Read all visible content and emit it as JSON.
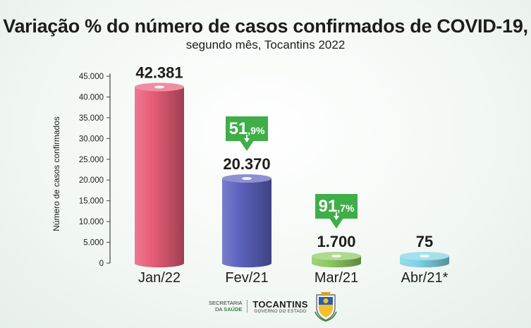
{
  "header": {
    "title": "Variação % do número de casos confirmados de COVID-19,",
    "subtitle": "segundo mês, Tocantins 2022"
  },
  "chart_data": {
    "type": "bar",
    "title": "Variação % do número de casos confirmados de COVID-19,",
    "subtitle": "segundo mês, Tocantins 2022",
    "xlabel": "",
    "ylabel": "Número de casos confirmados",
    "ylim": [
      0,
      45000
    ],
    "yticks": [
      0,
      5000,
      10000,
      15000,
      20000,
      25000,
      30000,
      35000,
      40000,
      45000
    ],
    "ytick_labels": [
      "0",
      "5.000",
      "10.000",
      "15.000",
      "20.000",
      "25.000",
      "30.000",
      "35.000",
      "40.000",
      "45.000"
    ],
    "categories": [
      "Jan/22",
      "Fev/21",
      "Mar/21",
      "Abr/21*"
    ],
    "values": [
      42381,
      20370,
      1700,
      75
    ],
    "value_labels": [
      "42.381",
      "20.370",
      "1.700",
      "75"
    ],
    "colors": [
      "#e85d78",
      "#5c62be",
      "#8cc860",
      "#7fd4e4"
    ],
    "annotations": [
      {
        "category": "Fev/21",
        "main": "51",
        "decimal": ",9%",
        "direction": "down"
      },
      {
        "category": "Mar/21",
        "main": "91",
        "decimal": ",7%",
        "direction": "down"
      }
    ],
    "arrow_color": "#3fae49",
    "grid": false,
    "legend": "none"
  },
  "footer": {
    "secretaria_line1": "SECRETARIA",
    "secretaria_line2a": "DA ",
    "secretaria_line2b": "SAÚDE",
    "state_name": "TOCANTINS",
    "gov_line": "GOVERNO DO ESTADO"
  }
}
